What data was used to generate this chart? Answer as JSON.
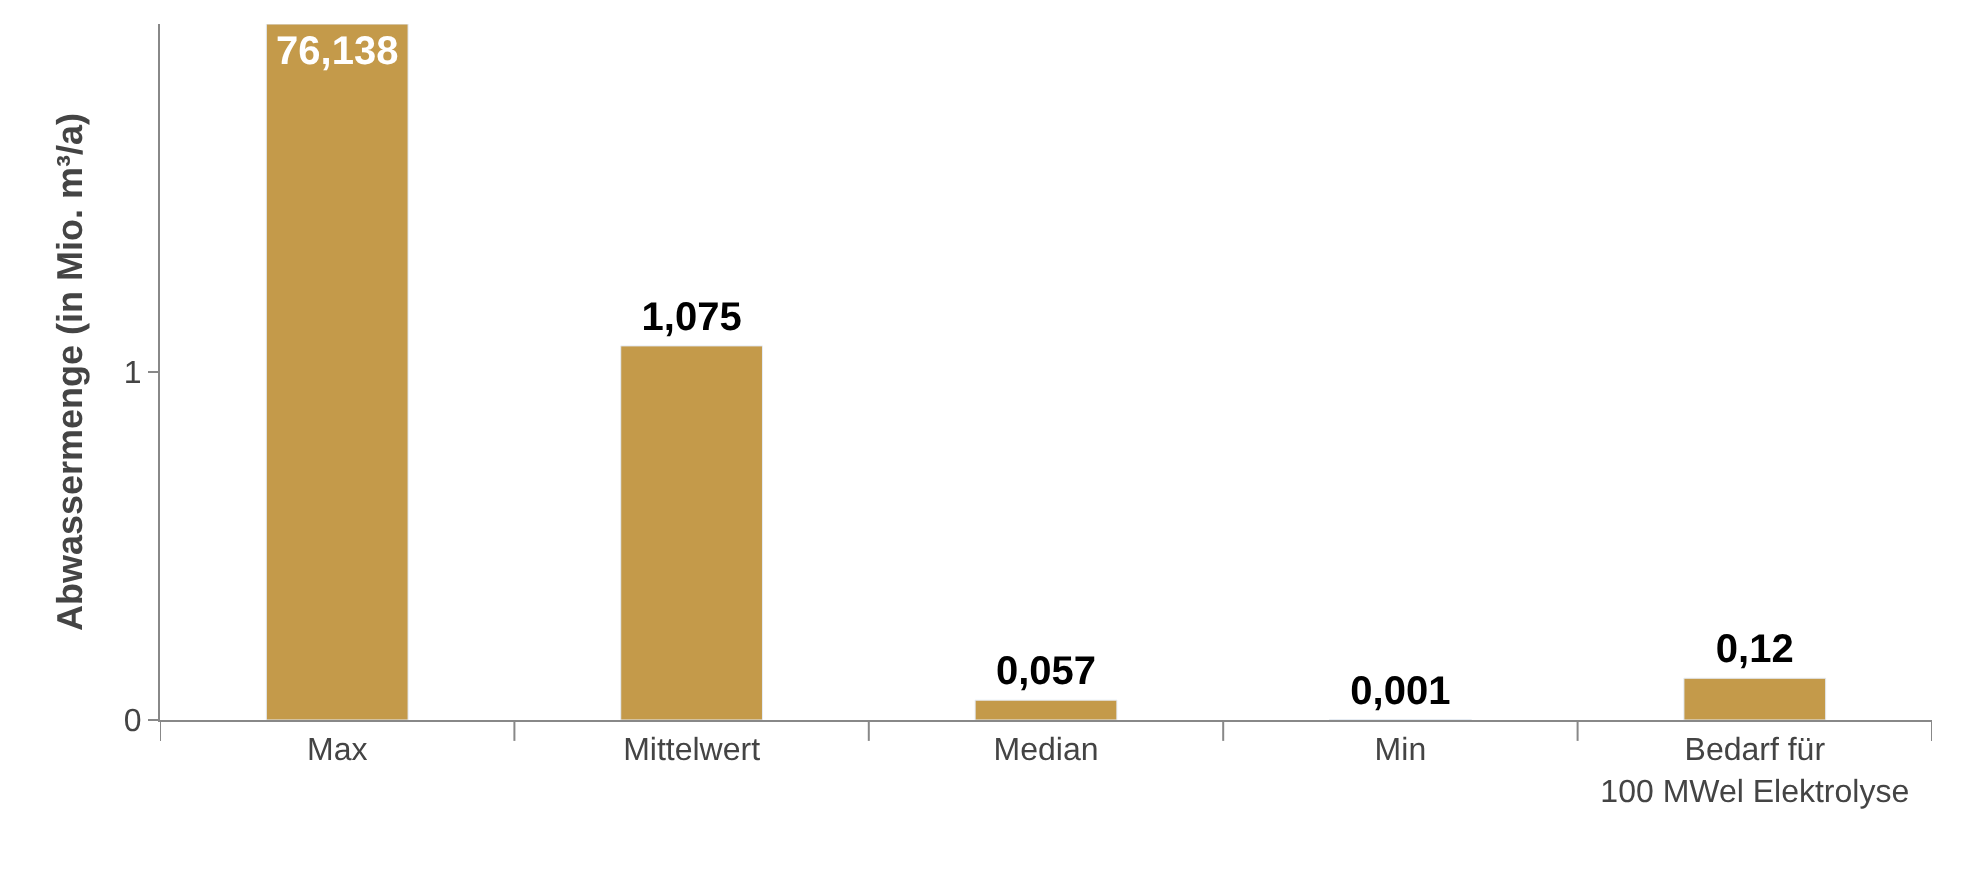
{
  "chart_data": {
    "type": "bar",
    "ylabel": "Abwassermenge (in Mio. m³/a)",
    "categories": [
      "Max",
      "Mittelwert",
      "Median",
      "Min",
      "Bedarf für\n100 MWel Elektrolyse"
    ],
    "series": [
      {
        "color": "#c49a4a",
        "axis": "y2",
        "values": [
          76.138,
          null,
          null,
          null,
          null
        ],
        "value_labels": [
          "76,138",
          null,
          null,
          null,
          null
        ]
      },
      {
        "color": "#c49a4a",
        "values": [
          null,
          1.075,
          0.057,
          0.001,
          0.12
        ],
        "value_labels": [
          null,
          "1,075",
          "0,057",
          "0,001",
          "0,12"
        ]
      }
    ],
    "ylim": [
      0,
      2
    ],
    "yticks": [
      0,
      1
    ],
    "y2lim": [
      0,
      76.138
    ],
    "legend": false
  }
}
